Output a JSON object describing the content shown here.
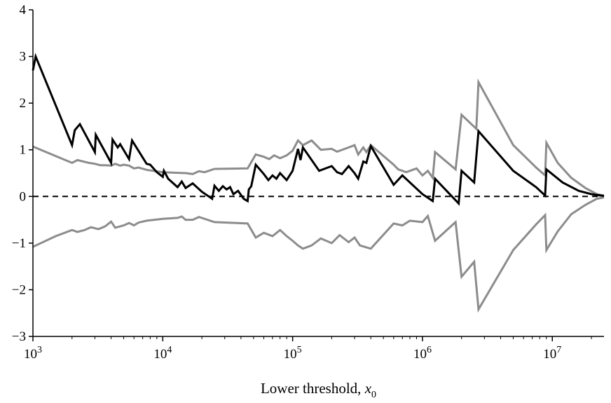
{
  "chart_data": {
    "type": "line",
    "title": "",
    "xlabel": "Lower threshold, ",
    "xlabel_var": "x",
    "xlabel_sub": "0",
    "ylabel": "",
    "x_scale": "log",
    "xlim": [
      1000,
      25000000
    ],
    "ylim": [
      -3,
      4
    ],
    "grid": false,
    "legend": "none",
    "x_ticks": [
      {
        "value": 1000,
        "base": "10",
        "exp": "3"
      },
      {
        "value": 10000,
        "base": "10",
        "exp": "4"
      },
      {
        "value": 100000,
        "base": "10",
        "exp": "5"
      },
      {
        "value": 1000000,
        "base": "10",
        "exp": "6"
      },
      {
        "value": 10000000,
        "base": "10",
        "exp": "7"
      }
    ],
    "y_ticks": [
      {
        "value": 4,
        "label": "4"
      },
      {
        "value": 3,
        "label": "3"
      },
      {
        "value": 2,
        "label": "2"
      },
      {
        "value": 1,
        "label": "1"
      },
      {
        "value": 0,
        "label": "0"
      },
      {
        "value": -1,
        "label": "−1"
      },
      {
        "value": -2,
        "label": "−2"
      },
      {
        "value": -3,
        "label": "−3"
      }
    ],
    "reference_line": {
      "y": 0,
      "style": "dashed",
      "color": "#000000"
    },
    "series": [
      {
        "id": "upper-band",
        "color": "#8c8c8c",
        "points": [
          [
            1000,
            1.07
          ],
          [
            2000,
            0.72
          ],
          [
            2200,
            0.78
          ],
          [
            2700,
            0.72
          ],
          [
            3000,
            0.7
          ],
          [
            3300,
            0.67
          ],
          [
            3600,
            0.67
          ],
          [
            4000,
            0.66
          ],
          [
            4300,
            0.7
          ],
          [
            4700,
            0.66
          ],
          [
            5000,
            0.68
          ],
          [
            5500,
            0.66
          ],
          [
            6000,
            0.6
          ],
          [
            6500,
            0.62
          ],
          [
            7500,
            0.57
          ],
          [
            10000,
            0.52
          ],
          [
            15000,
            0.5
          ],
          [
            17000,
            0.48
          ],
          [
            19000,
            0.54
          ],
          [
            21000,
            0.52
          ],
          [
            25000,
            0.59
          ],
          [
            45000,
            0.6
          ],
          [
            52000,
            0.9
          ],
          [
            60000,
            0.85
          ],
          [
            66000,
            0.8
          ],
          [
            72000,
            0.88
          ],
          [
            80000,
            0.82
          ],
          [
            90000,
            0.88
          ],
          [
            100000,
            0.98
          ],
          [
            110000,
            1.2
          ],
          [
            120000,
            1.1
          ],
          [
            140000,
            1.2
          ],
          [
            165000,
            1.0
          ],
          [
            200000,
            1.02
          ],
          [
            220000,
            0.96
          ],
          [
            270000,
            1.05
          ],
          [
            300000,
            1.1
          ],
          [
            320000,
            0.9
          ],
          [
            350000,
            1.05
          ],
          [
            370000,
            0.95
          ],
          [
            400000,
            1.1
          ],
          [
            600000,
            0.68
          ],
          [
            650000,
            0.58
          ],
          [
            750000,
            0.52
          ],
          [
            900000,
            0.6
          ],
          [
            1000000,
            0.45
          ],
          [
            1100000,
            0.55
          ],
          [
            1200000,
            0.4
          ],
          [
            1250000,
            0.95
          ],
          [
            1800000,
            0.58
          ],
          [
            2000000,
            1.75
          ],
          [
            2600000,
            1.45
          ],
          [
            2700000,
            2.45
          ],
          [
            5000000,
            1.1
          ],
          [
            7500000,
            0.62
          ],
          [
            8800000,
            0.45
          ],
          [
            9000000,
            1.15
          ],
          [
            11000000,
            0.72
          ],
          [
            14000000,
            0.4
          ],
          [
            18000000,
            0.18
          ],
          [
            22000000,
            0.05
          ],
          [
            25000000,
            0.02
          ]
        ]
      },
      {
        "id": "lower-band",
        "color": "#8c8c8c",
        "points": [
          [
            1000,
            -1.08
          ],
          [
            1500,
            -0.85
          ],
          [
            2000,
            -0.72
          ],
          [
            2200,
            -0.76
          ],
          [
            2500,
            -0.72
          ],
          [
            2800,
            -0.66
          ],
          [
            3200,
            -0.7
          ],
          [
            3600,
            -0.64
          ],
          [
            4000,
            -0.54
          ],
          [
            4300,
            -0.67
          ],
          [
            5000,
            -0.62
          ],
          [
            5500,
            -0.57
          ],
          [
            6000,
            -0.62
          ],
          [
            6500,
            -0.56
          ],
          [
            7500,
            -0.52
          ],
          [
            10000,
            -0.48
          ],
          [
            13000,
            -0.46
          ],
          [
            14000,
            -0.43
          ],
          [
            15000,
            -0.5
          ],
          [
            17000,
            -0.5
          ],
          [
            19000,
            -0.44
          ],
          [
            25000,
            -0.55
          ],
          [
            45000,
            -0.58
          ],
          [
            52000,
            -0.88
          ],
          [
            60000,
            -0.78
          ],
          [
            70000,
            -0.85
          ],
          [
            80000,
            -0.72
          ],
          [
            90000,
            -0.85
          ],
          [
            100000,
            -0.95
          ],
          [
            110000,
            -1.05
          ],
          [
            120000,
            -1.12
          ],
          [
            140000,
            -1.05
          ],
          [
            165000,
            -0.9
          ],
          [
            200000,
            -1.0
          ],
          [
            230000,
            -0.83
          ],
          [
            270000,
            -0.98
          ],
          [
            300000,
            -0.88
          ],
          [
            330000,
            -1.05
          ],
          [
            400000,
            -1.12
          ],
          [
            600000,
            -0.58
          ],
          [
            700000,
            -0.62
          ],
          [
            800000,
            -0.52
          ],
          [
            1000000,
            -0.55
          ],
          [
            1100000,
            -0.42
          ],
          [
            1250000,
            -0.95
          ],
          [
            1800000,
            -0.55
          ],
          [
            2000000,
            -1.72
          ],
          [
            2500000,
            -1.4
          ],
          [
            2700000,
            -2.42
          ],
          [
            5000000,
            -1.15
          ],
          [
            7500000,
            -0.6
          ],
          [
            8800000,
            -0.4
          ],
          [
            9000000,
            -1.15
          ],
          [
            11000000,
            -0.75
          ],
          [
            14000000,
            -0.38
          ],
          [
            18000000,
            -0.18
          ],
          [
            22000000,
            -0.05
          ],
          [
            25000000,
            -0.02
          ]
        ]
      },
      {
        "id": "main-series",
        "color": "#000000",
        "points": [
          [
            1000,
            2.7
          ],
          [
            1050,
            3.0
          ],
          [
            2000,
            1.1
          ],
          [
            2100,
            1.42
          ],
          [
            2300,
            1.55
          ],
          [
            3000,
            0.95
          ],
          [
            3050,
            1.32
          ],
          [
            4000,
            0.72
          ],
          [
            4100,
            1.22
          ],
          [
            4500,
            1.05
          ],
          [
            4700,
            1.12
          ],
          [
            5500,
            0.8
          ],
          [
            5800,
            1.2
          ],
          [
            7500,
            0.7
          ],
          [
            8000,
            0.68
          ],
          [
            9000,
            0.52
          ],
          [
            10000,
            0.42
          ],
          [
            10200,
            0.55
          ],
          [
            11000,
            0.38
          ],
          [
            13000,
            0.2
          ],
          [
            14000,
            0.32
          ],
          [
            15000,
            0.18
          ],
          [
            17000,
            0.28
          ],
          [
            20000,
            0.1
          ],
          [
            24000,
            -0.05
          ],
          [
            25000,
            0.23
          ],
          [
            27000,
            0.12
          ],
          [
            29000,
            0.22
          ],
          [
            31000,
            0.15
          ],
          [
            33000,
            0.2
          ],
          [
            35000,
            0.05
          ],
          [
            38000,
            0.12
          ],
          [
            42000,
            -0.05
          ],
          [
            45000,
            -0.1
          ],
          [
            46000,
            0.15
          ],
          [
            48000,
            0.22
          ],
          [
            52000,
            0.68
          ],
          [
            60000,
            0.48
          ],
          [
            65000,
            0.35
          ],
          [
            70000,
            0.45
          ],
          [
            75000,
            0.38
          ],
          [
            80000,
            0.5
          ],
          [
            90000,
            0.35
          ],
          [
            100000,
            0.55
          ],
          [
            110000,
            1.02
          ],
          [
            115000,
            0.78
          ],
          [
            120000,
            1.05
          ],
          [
            160000,
            0.55
          ],
          [
            200000,
            0.65
          ],
          [
            220000,
            0.52
          ],
          [
            240000,
            0.48
          ],
          [
            270000,
            0.65
          ],
          [
            300000,
            0.5
          ],
          [
            320000,
            0.38
          ],
          [
            350000,
            0.75
          ],
          [
            370000,
            0.72
          ],
          [
            400000,
            1.08
          ],
          [
            600000,
            0.25
          ],
          [
            700000,
            0.45
          ],
          [
            1000000,
            0.05
          ],
          [
            1200000,
            -0.1
          ],
          [
            1250000,
            0.38
          ],
          [
            1900000,
            -0.15
          ],
          [
            2000000,
            0.55
          ],
          [
            2500000,
            0.3
          ],
          [
            2700000,
            1.4
          ],
          [
            5000000,
            0.55
          ],
          [
            7500000,
            0.2
          ],
          [
            8800000,
            0.02
          ],
          [
            9000000,
            0.58
          ],
          [
            12000000,
            0.3
          ],
          [
            16000000,
            0.12
          ],
          [
            20000000,
            0.05
          ],
          [
            25000000,
            0.01
          ]
        ]
      }
    ]
  }
}
